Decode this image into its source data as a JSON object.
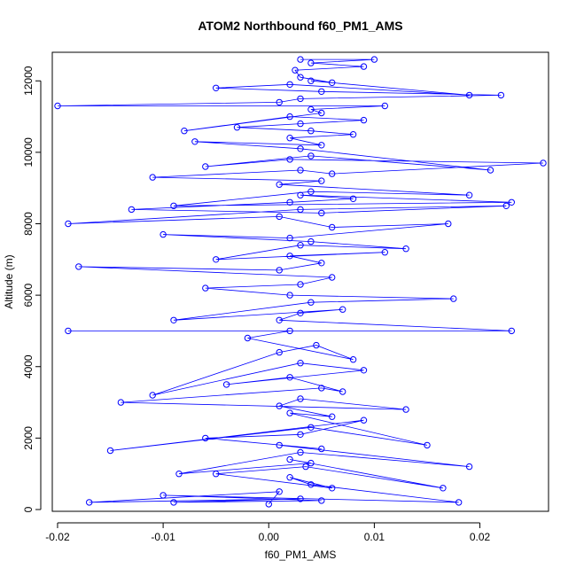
{
  "chart_data": {
    "type": "scatter",
    "title": "ATOM2 Northbound f60_PM1_AMS",
    "xlabel": "f60_PM1_AMS",
    "ylabel": "Altitude (m)",
    "xlim": [
      -0.0205,
      0.0265
    ],
    "ylim": [
      -50,
      12800
    ],
    "xticks": [
      -0.02,
      -0.01,
      0.0,
      0.01,
      0.02
    ],
    "xtick_labels": [
      "-0.02",
      "-0.01",
      "0.00",
      "0.01",
      "0.02"
    ],
    "yticks": [
      0,
      2000,
      4000,
      6000,
      8000,
      10000,
      12000
    ],
    "ytick_labels": [
      "0",
      "2000",
      "4000",
      "6000",
      "8000",
      "10000",
      "12000"
    ],
    "grid": false,
    "marker": "open-circle",
    "connected": true,
    "color": "#0000ff",
    "series": [
      {
        "x": [
          0.0,
          0.001,
          -0.017,
          0.003,
          -0.009,
          0.005,
          -0.01,
          0.018,
          0.004,
          0.002,
          0.006,
          -0.005,
          0.0035,
          0.0165,
          0.002,
          0.004,
          -0.0085,
          0.003,
          0.019,
          0.001,
          0.005,
          -0.006,
          0.003,
          0.009,
          -0.015,
          0.004,
          0.015,
          0.002,
          0.006,
          0.001,
          0.003,
          0.013,
          -0.014,
          0.005,
          0.007,
          0.002,
          -0.004,
          0.009,
          0.003,
          -0.011,
          0.001,
          0.0045,
          0.008,
          -0.002,
          0.002,
          -0.019,
          0.023,
          0.001,
          0.003,
          0.007,
          -0.009,
          0.004,
          0.0175,
          0.002,
          -0.006,
          0.003,
          0.006,
          -0.018,
          0.001,
          0.005,
          0.002,
          0.011,
          -0.005,
          0.003,
          0.013,
          0.004,
          -0.01,
          0.002,
          0.017,
          0.006,
          0.001,
          -0.019,
          0.003,
          0.0225,
          0.005,
          -0.013,
          0.002,
          0.008,
          0.003,
          0.023,
          -0.009,
          0.004,
          0.019,
          0.001,
          0.005,
          -0.011,
          0.003,
          0.006,
          0.026,
          0.002,
          -0.006,
          0.004,
          0.021,
          0.003,
          -0.007,
          0.005,
          0.002,
          0.008,
          0.004,
          -0.003,
          0.003,
          0.009,
          0.002,
          -0.008,
          0.005,
          0.004,
          0.011,
          -0.02,
          0.001,
          0.003,
          0.022,
          0.005,
          -0.005,
          0.002,
          0.019,
          0.004,
          0.006,
          0.003,
          0.0025,
          0.009,
          0.004,
          0.01,
          0.003
        ],
        "y": [
          150,
          500,
          200,
          300,
          200,
          250,
          400,
          200,
          700,
          900,
          600,
          1000,
          1200,
          600,
          1400,
          1300,
          1000,
          1600,
          1200,
          1800,
          1700,
          2000,
          2100,
          2500,
          1650,
          2300,
          1800,
          2700,
          2600,
          2900,
          3100,
          2800,
          3000,
          3400,
          3300,
          3700,
          3500,
          3900,
          4100,
          3200,
          4400,
          4600,
          4200,
          4800,
          5000,
          5000,
          5000,
          5300,
          5500,
          5600,
          5300,
          5800,
          5900,
          6000,
          6200,
          6300,
          6500,
          6800,
          6700,
          6900,
          7100,
          7200,
          7000,
          7400,
          7300,
          7500,
          7700,
          7600,
          8000,
          7900,
          8200,
          8000,
          8400,
          8500,
          8300,
          8400,
          8600,
          8700,
          8800,
          8600,
          8500,
          8900,
          8800,
          9100,
          9200,
          9300,
          9500,
          9400,
          9700,
          9800,
          9600,
          9900,
          9500,
          10100,
          10300,
          10200,
          10400,
          10500,
          10600,
          10700,
          10800,
          10900,
          11000,
          10600,
          11100,
          11200,
          11300,
          11300,
          11400,
          11500,
          11600,
          11700,
          11800,
          11900,
          11600,
          12000,
          11950,
          12100,
          12300,
          12400,
          12500,
          12600,
          12600
        ]
      }
    ]
  }
}
